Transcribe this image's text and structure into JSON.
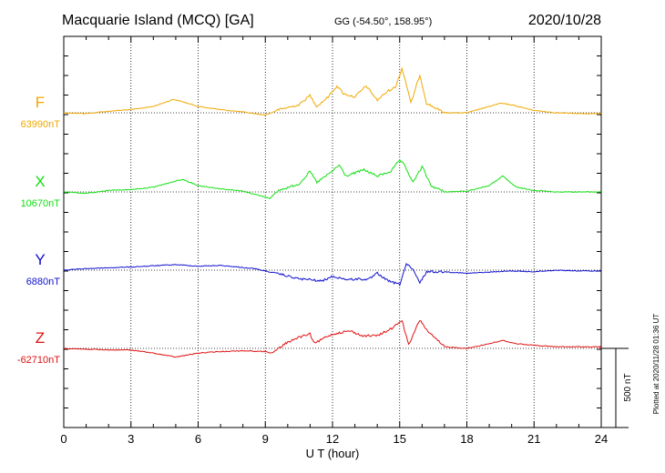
{
  "header": {
    "station": "Macquarie Island (MCQ)  [GA]",
    "coords": "GG (-54.50°, 158.95°)",
    "date": "2020/10/28"
  },
  "plotted_note": "Plotted at 2020/11/28 01:36 UT",
  "scale_label": "500 nT",
  "chart_data": {
    "type": "line",
    "xlabel": "U T (hour)",
    "xlim": [
      0,
      24
    ],
    "x_ticks": [
      0,
      3,
      6,
      9,
      12,
      15,
      18,
      21,
      24
    ],
    "scale_bar_nT": 500,
    "colors": {
      "F": "#f0a800",
      "X": "#10e010",
      "Y": "#1010d0",
      "Z": "#e01010"
    },
    "series": [
      {
        "name": "F",
        "baseline_label": "63990nT",
        "points": [
          [
            0,
            0
          ],
          [
            1,
            5
          ],
          [
            2,
            -10
          ],
          [
            3,
            -20
          ],
          [
            4,
            -40
          ],
          [
            4.9,
            -85
          ],
          [
            5.3,
            -70
          ],
          [
            6,
            -40
          ],
          [
            7,
            -20
          ],
          [
            8,
            -5
          ],
          [
            9,
            15
          ],
          [
            9.6,
            -20
          ],
          [
            10.5,
            -50
          ],
          [
            11,
            -110
          ],
          [
            11.3,
            -40
          ],
          [
            11.8,
            -100
          ],
          [
            12.2,
            -170
          ],
          [
            12.5,
            -120
          ],
          [
            13,
            -100
          ],
          [
            13.5,
            -170
          ],
          [
            14,
            -80
          ],
          [
            14.5,
            -140
          ],
          [
            14.8,
            -160
          ],
          [
            15.1,
            -280
          ],
          [
            15.3,
            -180
          ],
          [
            15.5,
            -60
          ],
          [
            15.9,
            -240
          ],
          [
            16.2,
            -60
          ],
          [
            17,
            0
          ],
          [
            18,
            0
          ],
          [
            18.5,
            -20
          ],
          [
            19.5,
            -60
          ],
          [
            20,
            -50
          ],
          [
            21,
            -15
          ],
          [
            22,
            0
          ],
          [
            23,
            5
          ],
          [
            24,
            5
          ]
        ]
      },
      {
        "name": "X",
        "baseline_label": "10670nT",
        "points": [
          [
            0,
            0
          ],
          [
            1,
            10
          ],
          [
            2,
            -10
          ],
          [
            3,
            -15
          ],
          [
            4,
            -30
          ],
          [
            5.3,
            -80
          ],
          [
            6,
            -40
          ],
          [
            7,
            -20
          ],
          [
            8,
            -5
          ],
          [
            9.2,
            40
          ],
          [
            9.6,
            -10
          ],
          [
            10.5,
            -50
          ],
          [
            11,
            -130
          ],
          [
            11.3,
            -60
          ],
          [
            11.9,
            -120
          ],
          [
            12.3,
            -170
          ],
          [
            12.6,
            -100
          ],
          [
            13.4,
            -140
          ],
          [
            14,
            -100
          ],
          [
            14.6,
            -130
          ],
          [
            15,
            -200
          ],
          [
            15.2,
            -170
          ],
          [
            15.6,
            -60
          ],
          [
            16,
            -160
          ],
          [
            16.4,
            -40
          ],
          [
            17,
            0
          ],
          [
            18,
            -5
          ],
          [
            19,
            -40
          ],
          [
            19.6,
            -100
          ],
          [
            20.2,
            -30
          ],
          [
            21,
            -10
          ],
          [
            22,
            0
          ],
          [
            24,
            0
          ]
        ]
      },
      {
        "name": "Y",
        "baseline_label": "6880nT",
        "points": [
          [
            0,
            0
          ],
          [
            1,
            -10
          ],
          [
            3,
            -20
          ],
          [
            5,
            -35
          ],
          [
            6,
            -25
          ],
          [
            7,
            -30
          ],
          [
            8.5,
            -10
          ],
          [
            9.5,
            20
          ],
          [
            10.5,
            55
          ],
          [
            11,
            60
          ],
          [
            11.5,
            70
          ],
          [
            12,
            40
          ],
          [
            12.7,
            60
          ],
          [
            13.2,
            55
          ],
          [
            13.6,
            60
          ],
          [
            14,
            20
          ],
          [
            14.5,
            70
          ],
          [
            15,
            90
          ],
          [
            15.3,
            -40
          ],
          [
            15.6,
            0
          ],
          [
            15.9,
            80
          ],
          [
            16.2,
            10
          ],
          [
            17,
            10
          ],
          [
            18,
            20
          ],
          [
            20,
            5
          ],
          [
            21,
            10
          ],
          [
            22,
            0
          ],
          [
            23,
            5
          ],
          [
            24,
            5
          ]
        ]
      },
      {
        "name": "Z",
        "baseline_label": "-62710nT",
        "points": [
          [
            0,
            0
          ],
          [
            1,
            5
          ],
          [
            2,
            10
          ],
          [
            3,
            10
          ],
          [
            4,
            30
          ],
          [
            5,
            55
          ],
          [
            6,
            30
          ],
          [
            7,
            20
          ],
          [
            8,
            15
          ],
          [
            9,
            20
          ],
          [
            9.3,
            30
          ],
          [
            9.6,
            0
          ],
          [
            10,
            -40
          ],
          [
            10.5,
            -70
          ],
          [
            11,
            -90
          ],
          [
            11.2,
            -30
          ],
          [
            11.8,
            -80
          ],
          [
            12.3,
            -100
          ],
          [
            12.8,
            -110
          ],
          [
            13.3,
            -80
          ],
          [
            14,
            -80
          ],
          [
            14.7,
            -130
          ],
          [
            15.1,
            -180
          ],
          [
            15.4,
            -20
          ],
          [
            15.9,
            -180
          ],
          [
            16.3,
            -100
          ],
          [
            17,
            -10
          ],
          [
            18,
            0
          ],
          [
            19,
            -30
          ],
          [
            19.6,
            -50
          ],
          [
            20.2,
            -30
          ],
          [
            21,
            -20
          ],
          [
            22,
            -10
          ],
          [
            24,
            -10
          ]
        ]
      }
    ]
  }
}
